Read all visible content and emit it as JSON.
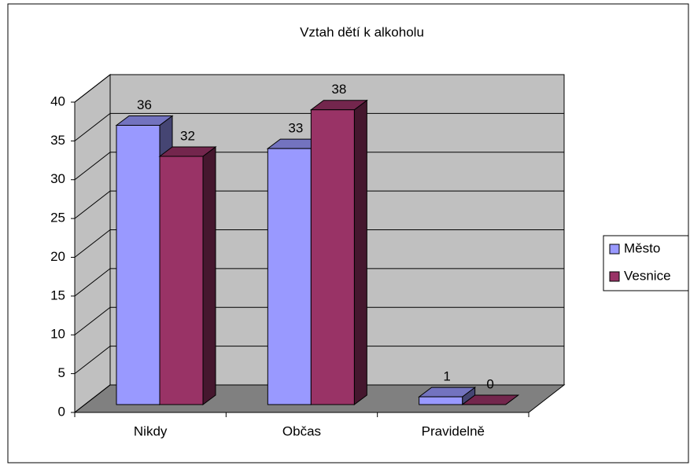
{
  "chart_data": {
    "type": "bar3d",
    "title": "Vztah dětí k alkoholu",
    "categories": [
      "Nikdy",
      "Občas",
      "Pravidelně"
    ],
    "series": [
      {
        "name": "Město",
        "color": "#9999ff",
        "values": [
          36,
          33,
          1
        ]
      },
      {
        "name": "Vesnice",
        "color": "#993366",
        "values": [
          32,
          38,
          0
        ]
      }
    ],
    "ylim": [
      0,
      40
    ],
    "yticks": [
      0,
      5,
      10,
      15,
      20,
      25,
      30,
      35,
      40
    ],
    "grid": true,
    "legend": "right"
  }
}
